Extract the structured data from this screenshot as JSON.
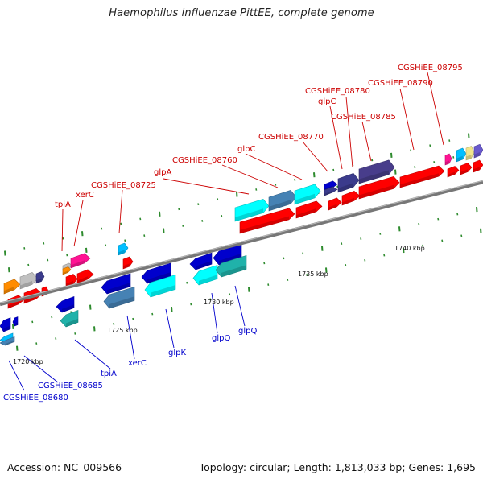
{
  "header": {
    "title": "Haemophilus influenzae PittEE, complete genome"
  },
  "footer": {
    "accession": "Accession: NC_009566",
    "topology": "Topology: circular; Length: 1,813,033 bp; Genes: 1,695"
  },
  "colors": {
    "forward_label": "#cc0000",
    "reverse_label": "#0000cc",
    "backbone": "#888888"
  },
  "scale_labels": [
    "1720 kbp",
    "1725 kbp",
    "1730 kbp",
    "1735 kbp",
    "1740 kbp"
  ],
  "forward_gene_labels": [
    "tpiA",
    "xerC",
    "CGSHiEE_08725",
    "glpA",
    "CGSHiEE_08760",
    "glpC",
    "CGSHiEE_08770",
    "CGSHiEE_08780",
    "glpC",
    "CGSHiEE_08785",
    "CGSHiEE_08790",
    "CGSHiEE_08795"
  ],
  "reverse_gene_labels": [
    "CGSHiEE_08680",
    "CGSHiEE_08685",
    "tpiA",
    "xerC",
    "glpK",
    "glpQ",
    "glpQ"
  ]
}
